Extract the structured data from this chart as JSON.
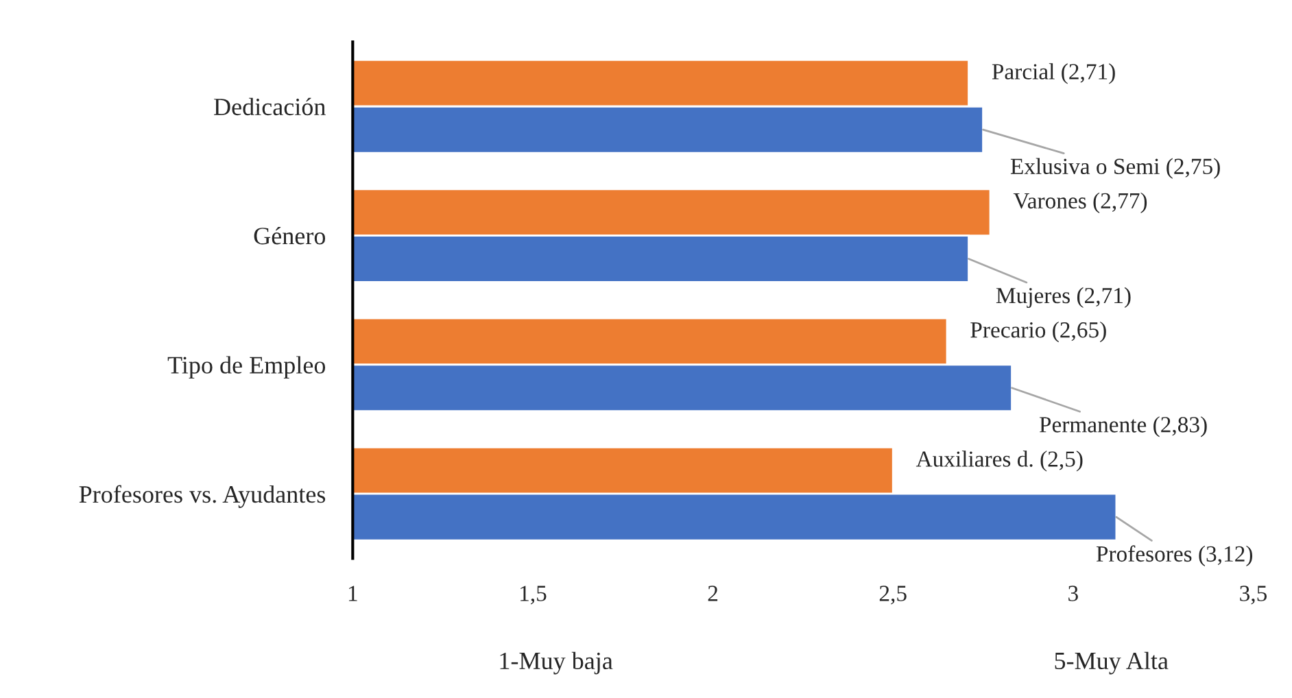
{
  "chart_data": {
    "type": "bar",
    "orientation": "horizontal",
    "categories": [
      "Dedicación",
      "Género",
      "Tipo de Empleo",
      "Profesores vs. Ayudantes"
    ],
    "series": [
      {
        "color": "#ed7d31",
        "values": [
          2.71,
          2.77,
          2.65,
          2.5
        ],
        "value_labels": [
          "Parcial (2,71)",
          "Varones (2,77)",
          "Precario (2,65)",
          "Auxiliares d. (2,5)"
        ]
      },
      {
        "color": "#4472c4",
        "values": [
          2.75,
          2.71,
          2.83,
          3.12
        ],
        "value_labels": [
          "Exlusiva o Semi (2,75)",
          "Mujeres (2,71)",
          "Permanente (2,83)",
          "Profesores (3,12)"
        ]
      }
    ],
    "xlim": [
      1,
      3.5
    ],
    "xticks": [
      1,
      {
        "value": 1.5,
        "label": "1,5"
      },
      2,
      {
        "value": 2.5,
        "label": "2,5"
      },
      3,
      {
        "value": 3.5,
        "label": "3,5"
      }
    ],
    "annotations": [
      "1-Muy baja",
      "5-Muy Alta"
    ],
    "grid": false,
    "legend": false
  }
}
